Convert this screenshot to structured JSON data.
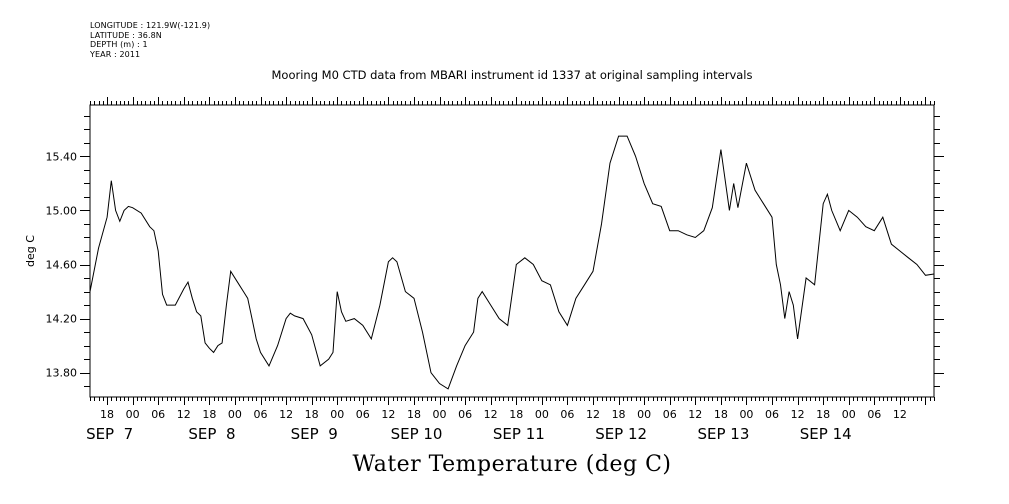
{
  "header": {
    "longitude": "LONGITUDE : 121.9W(-121.9)",
    "latitude": "LATITUDE : 36.8N",
    "depth": "DEPTH (m) : 1",
    "year": "YEAR : 2011"
  },
  "chart_data": {
    "type": "line",
    "title": "Mooring M0 CTD data from MBARI instrument id 1337 at original sampling intervals",
    "xlabel": "Water Temperature (deg C)",
    "ylabel": "deg C",
    "ylim": [
      13.62,
      15.78
    ],
    "yticks": [
      13.8,
      14.2,
      14.6,
      15.0,
      15.4
    ],
    "ytick_labels": [
      "13.80",
      "14.20",
      "14.60",
      "15.00",
      "15.40"
    ],
    "x_start": "2011-09-06 14:00",
    "x_end": "2011-09-14 20:00",
    "x_tick_hour_labels": [
      "18",
      "00",
      "06",
      "12",
      "18",
      "00",
      "06",
      "12",
      "18",
      "00",
      "06",
      "12",
      "18",
      "00",
      "06",
      "12",
      "18",
      "00",
      "06",
      "12",
      "18",
      "00",
      "06",
      "12",
      "18",
      "00",
      "06",
      "12",
      "18",
      "00",
      "06",
      "12"
    ],
    "x_tick_hour_labels_start": "2011-09-06 18:00",
    "day_labels": [
      {
        "date": "2011-09-07",
        "label": "SEP  7"
      },
      {
        "date": "2011-09-08",
        "label": "SEP  8"
      },
      {
        "date": "2011-09-09",
        "label": "SEP  9"
      },
      {
        "date": "2011-09-10",
        "label": "SEP 10"
      },
      {
        "date": "2011-09-11",
        "label": "SEP 11"
      },
      {
        "date": "2011-09-12",
        "label": "SEP 12"
      },
      {
        "date": "2011-09-13",
        "label": "SEP 13"
      },
      {
        "date": "2011-09-14",
        "label": "SEP 14"
      }
    ],
    "grid": false,
    "series": [
      {
        "x": [
          "2011-09-06 14:00",
          "2011-09-06 16:00",
          "2011-09-06 18:00",
          "2011-09-06 19:00",
          "2011-09-06 20:00",
          "2011-09-06 21:00",
          "2011-09-06 22:00",
          "2011-09-06 23:00",
          "2011-09-07 00:00",
          "2011-09-07 02:00",
          "2011-09-07 04:00",
          "2011-09-07 05:00",
          "2011-09-07 06:00",
          "2011-09-07 07:00",
          "2011-09-07 08:00",
          "2011-09-07 10:00",
          "2011-09-07 12:00",
          "2011-09-07 13:00",
          "2011-09-07 14:00",
          "2011-09-07 15:00",
          "2011-09-07 16:00",
          "2011-09-07 17:00",
          "2011-09-07 18:00",
          "2011-09-07 19:00",
          "2011-09-07 20:00",
          "2011-09-07 21:00",
          "2011-09-07 22:00",
          "2011-09-07 23:00",
          "2011-09-08 01:00",
          "2011-09-08 02:00",
          "2011-09-08 03:00",
          "2011-09-08 04:00",
          "2011-09-08 05:00",
          "2011-09-08 06:00",
          "2011-09-08 08:00",
          "2011-09-08 10:00",
          "2011-09-08 12:00",
          "2011-09-08 13:00",
          "2011-09-08 14:00",
          "2011-09-08 16:00",
          "2011-09-08 18:00",
          "2011-09-08 20:00",
          "2011-09-08 22:00",
          "2011-09-08 23:00",
          "2011-09-09 00:00",
          "2011-09-09 01:00",
          "2011-09-09 02:00",
          "2011-09-09 04:00",
          "2011-09-09 06:00",
          "2011-09-09 08:00",
          "2011-09-09 10:00",
          "2011-09-09 12:00",
          "2011-09-09 13:00",
          "2011-09-09 14:00",
          "2011-09-09 16:00",
          "2011-09-09 18:00",
          "2011-09-09 20:00",
          "2011-09-09 22:00",
          "2011-09-10 00:00",
          "2011-09-10 02:00",
          "2011-09-10 04:00",
          "2011-09-10 06:00",
          "2011-09-10 08:00",
          "2011-09-10 09:00",
          "2011-09-10 10:00",
          "2011-09-10 12:00",
          "2011-09-10 14:00",
          "2011-09-10 16:00",
          "2011-09-10 18:00",
          "2011-09-10 20:00",
          "2011-09-10 22:00",
          "2011-09-11 00:00",
          "2011-09-11 02:00",
          "2011-09-11 04:00",
          "2011-09-11 06:00",
          "2011-09-11 08:00",
          "2011-09-11 10:00",
          "2011-09-11 12:00",
          "2011-09-11 14:00",
          "2011-09-11 16:00",
          "2011-09-11 18:00",
          "2011-09-11 20:00",
          "2011-09-11 22:00",
          "2011-09-12 00:00",
          "2011-09-12 02:00",
          "2011-09-12 04:00",
          "2011-09-12 06:00",
          "2011-09-12 08:00",
          "2011-09-12 10:00",
          "2011-09-12 12:00",
          "2011-09-12 14:00",
          "2011-09-12 16:00",
          "2011-09-12 18:00",
          "2011-09-12 20:00",
          "2011-09-12 21:00",
          "2011-09-12 22:00",
          "2011-09-13 00:00",
          "2011-09-13 02:00",
          "2011-09-13 04:00",
          "2011-09-13 06:00",
          "2011-09-13 07:00",
          "2011-09-13 08:00",
          "2011-09-13 09:00",
          "2011-09-13 10:00",
          "2011-09-13 11:00",
          "2011-09-13 12:00",
          "2011-09-13 14:00",
          "2011-09-13 16:00",
          "2011-09-13 18:00",
          "2011-09-13 19:00",
          "2011-09-13 20:00",
          "2011-09-13 22:00",
          "2011-09-14 00:00",
          "2011-09-14 02:00",
          "2011-09-14 04:00",
          "2011-09-14 06:00",
          "2011-09-14 08:00",
          "2011-09-14 10:00",
          "2011-09-14 12:00",
          "2011-09-14 14:00",
          "2011-09-14 16:00",
          "2011-09-14 18:00",
          "2011-09-14 20:00"
        ],
        "y": [
          14.4,
          14.72,
          14.95,
          15.22,
          15.0,
          14.92,
          15.0,
          15.03,
          15.02,
          14.98,
          14.88,
          14.85,
          14.7,
          14.38,
          14.3,
          14.3,
          14.42,
          14.47,
          14.35,
          14.25,
          14.22,
          14.02,
          13.98,
          13.95,
          14.0,
          14.02,
          14.3,
          14.55,
          14.45,
          14.4,
          14.35,
          14.2,
          14.05,
          13.95,
          13.85,
          14.0,
          14.2,
          14.24,
          14.22,
          14.2,
          14.08,
          13.85,
          13.9,
          13.95,
          14.4,
          14.25,
          14.18,
          14.2,
          14.15,
          14.05,
          14.3,
          14.62,
          14.65,
          14.62,
          14.4,
          14.35,
          14.1,
          13.8,
          13.72,
          13.68,
          13.85,
          14.0,
          14.1,
          14.35,
          14.4,
          14.3,
          14.2,
          14.15,
          14.6,
          14.65,
          14.6,
          14.48,
          14.45,
          14.25,
          14.15,
          14.35,
          14.45,
          14.55,
          14.9,
          15.35,
          15.55,
          15.55,
          15.4,
          15.2,
          15.05,
          15.03,
          14.85,
          14.85,
          14.82,
          14.8,
          14.85,
          15.02,
          15.45,
          15.0,
          15.2,
          15.02,
          15.35,
          15.15,
          15.05,
          14.95,
          14.6,
          14.45,
          14.2,
          14.4,
          14.3,
          14.05,
          14.5,
          14.45,
          15.05,
          15.12,
          15.0,
          14.85,
          15.0,
          14.95,
          14.88,
          14.85,
          14.95,
          14.75,
          14.7,
          14.65,
          14.6,
          14.52,
          14.53
        ]
      }
    ]
  }
}
